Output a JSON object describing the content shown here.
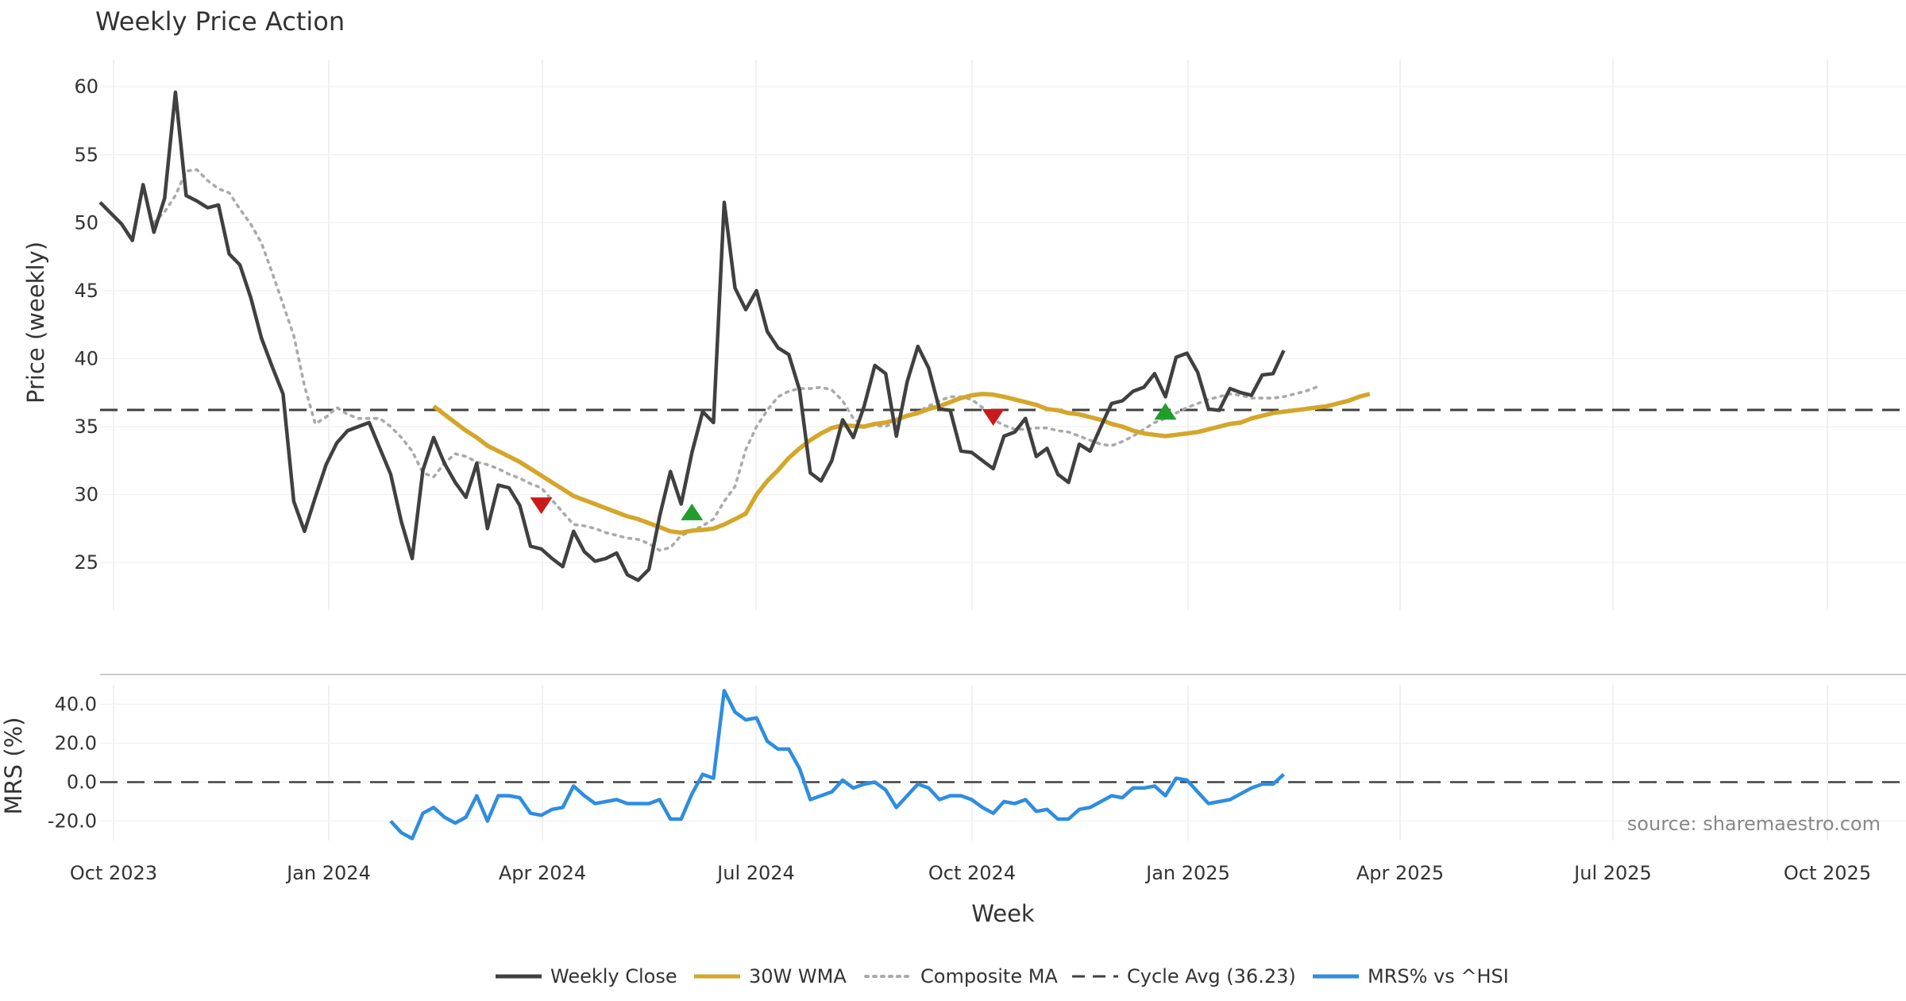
{
  "chart_data": {
    "type": "line",
    "title": "Weekly Price Action",
    "xlabel": "Week",
    "source_note": "source: sharemaestro.com",
    "x_ticks": [
      "Oct 2023",
      "Jan 2024",
      "Apr 2024",
      "Jul 2024",
      "Oct 2024",
      "Jan 2025",
      "Apr 2025",
      "Jul 2025",
      "Oct 2025"
    ],
    "price_panel": {
      "ylabel": "Price (weekly)",
      "ylim": [
        21.5,
        62
      ],
      "y_ticks": [
        25,
        30,
        35,
        40,
        45,
        50,
        55,
        60
      ],
      "cycle_avg": 36.23,
      "weekly_close": [
        51.5,
        50.7,
        49.9,
        48.7,
        52.8,
        49.3,
        51.8,
        59.6,
        52.0,
        51.6,
        51.1,
        51.3,
        47.7,
        46.9,
        44.5,
        41.5,
        39.4,
        37.4,
        29.5,
        27.3,
        29.8,
        32.2,
        33.8,
        34.7,
        35.0,
        35.3,
        33.4,
        31.5,
        28.0,
        25.3,
        31.8,
        34.2,
        32.3,
        30.9,
        29.8,
        32.3,
        27.5,
        30.7,
        30.5,
        29.2,
        26.2,
        26.0,
        25.3,
        24.7,
        27.3,
        25.8,
        25.1,
        25.3,
        25.7,
        24.1,
        23.7,
        24.5,
        28.4,
        31.7,
        29.3,
        33.1,
        36.1,
        35.3,
        51.5,
        45.2,
        43.6,
        45.0,
        42.0,
        40.8,
        40.3,
        37.7,
        31.6,
        31.0,
        32.5,
        35.5,
        34.2,
        36.5,
        39.5,
        38.9,
        34.3,
        38.3,
        40.9,
        39.3,
        36.3,
        36.2,
        33.2,
        33.1,
        32.5,
        31.9,
        34.3,
        34.6,
        35.6,
        32.8,
        33.4,
        31.5,
        30.9,
        33.7,
        33.2,
        35.0,
        36.7,
        36.9,
        37.6,
        37.9,
        38.9,
        37.2,
        40.1,
        40.4,
        39.0,
        36.3,
        36.2,
        37.8,
        37.5,
        37.3,
        38.8,
        38.9,
        40.6
      ],
      "wma_30w_start_index": 31,
      "wma_30w": [
        36.5,
        35.9,
        35.3,
        34.7,
        34.2,
        33.6,
        33.2,
        32.8,
        32.4,
        31.9,
        31.4,
        30.9,
        30.4,
        29.9,
        29.6,
        29.3,
        29.0,
        28.7,
        28.4,
        28.2,
        27.9,
        27.6,
        27.3,
        27.2,
        27.35,
        27.4,
        27.5,
        27.8,
        28.2,
        28.6,
        30.0,
        31.0,
        31.8,
        32.7,
        33.4,
        34.0,
        34.5,
        34.9,
        35.1,
        35.05,
        35.0,
        35.2,
        35.3,
        35.5,
        35.8,
        36.0,
        36.3,
        36.5,
        36.8,
        37.1,
        37.3,
        37.4,
        37.35,
        37.2,
        37.0,
        36.8,
        36.6,
        36.3,
        36.2,
        36.0,
        35.9,
        35.7,
        35.5,
        35.2,
        35.0,
        34.7,
        34.5,
        34.4,
        34.3,
        34.4,
        34.5,
        34.6,
        34.8,
        35.0,
        35.2,
        35.3,
        35.6,
        35.8,
        36.0,
        36.1,
        36.2,
        36.3,
        36.4,
        36.5,
        36.7,
        36.9,
        37.2,
        37.4
      ],
      "composite_ma_start_index": 5,
      "composite_ma": [
        50.0,
        50.8,
        52.0,
        53.8,
        53.9,
        53.1,
        52.5,
        52.2,
        51.0,
        49.9,
        48.5,
        46.3,
        44.0,
        41.7,
        38.0,
        35.2,
        35.7,
        36.4,
        35.9,
        35.6,
        35.6,
        35.6,
        35.0,
        34.2,
        33.2,
        31.6,
        31.3,
        32.3,
        33.0,
        32.8,
        32.4,
        32.2,
        31.9,
        31.5,
        31.2,
        30.8,
        30.5,
        29.6,
        28.7,
        27.8,
        27.7,
        27.5,
        27.2,
        27.0,
        26.8,
        26.7,
        26.4,
        25.9,
        26.1,
        27.0,
        27.3,
        27.7,
        28.2,
        29.5,
        30.6,
        33.3,
        35.0,
        36.2,
        37.2,
        37.6,
        37.8,
        37.8,
        37.9,
        37.7,
        36.9,
        35.6,
        35.0,
        35.1,
        35.0,
        35.4,
        35.8,
        36.1,
        36.5,
        36.9,
        37.2,
        37.2,
        37.0,
        36.4,
        35.5,
        35.1,
        34.8,
        34.8,
        34.9,
        34.9,
        34.7,
        34.6,
        34.3,
        34.0,
        33.7,
        33.6,
        33.9,
        34.3,
        34.8,
        35.3,
        35.6,
        36.0,
        36.4,
        36.7,
        37.0,
        37.2,
        37.4,
        37.3,
        37.1,
        37.1,
        37.1,
        37.2,
        37.4,
        37.6,
        37.9
      ],
      "buy_signals": [
        {
          "index": 55,
          "value": 28.6
        },
        {
          "index": 99,
          "value": 36.0
        }
      ],
      "sell_signals": [
        {
          "index": 41,
          "value": 29.3
        },
        {
          "index": 83,
          "value": 35.8
        }
      ]
    },
    "mrs_panel": {
      "ylabel": "MRS (%)",
      "ylim": [
        -30,
        50
      ],
      "y_ticks": [
        40.0,
        20.0,
        0.0,
        -20.0
      ],
      "y_tick_labels": [
        "40.0",
        "20.0",
        "0.0",
        "-20.0"
      ],
      "reference_line": 0.0,
      "start_index": 27,
      "values": [
        -20,
        -26,
        -29,
        -16,
        -13,
        -18,
        -21,
        -18,
        -7,
        -20,
        -7,
        -7,
        -8,
        -16,
        -17,
        -14,
        -13,
        -2,
        -7,
        -11,
        -10,
        -9,
        -11,
        -11,
        -11,
        -9,
        -19,
        -19,
        -6,
        4,
        2,
        47,
        36,
        32,
        33,
        21,
        17,
        17,
        7,
        -9,
        -7,
        -5,
        1,
        -3,
        -1,
        0,
        -4,
        -13,
        -7,
        -1,
        -3,
        -9,
        -7,
        -7,
        -9,
        -13,
        -16,
        -10,
        -11,
        -9,
        -15,
        -14,
        -19,
        -19,
        -14,
        -13,
        -10,
        -7,
        -8,
        -3,
        -3,
        -2,
        -7,
        2,
        1,
        -5,
        -11,
        -10,
        -9,
        -6,
        -3,
        -1,
        -1,
        4
      ]
    },
    "legend": [
      {
        "label": "Weekly Close",
        "color": "#404040",
        "style": "solid"
      },
      {
        "label": "30W WMA",
        "color": "#d4a62a",
        "style": "solid"
      },
      {
        "label": "Composite MA",
        "color": "#aaaaaa",
        "style": "dotted"
      },
      {
        "label": "Cycle Avg (36.23)",
        "color": "#404040",
        "style": "dashed"
      },
      {
        "label": "MRS% vs ^HSI",
        "color": "#2e8de0",
        "style": "solid"
      }
    ],
    "colors": {
      "weekly_close": "#404040",
      "wma": "#d4a62a",
      "composite_ma": "#aaaaaa",
      "cycle_avg": "#404040",
      "mrs": "#2e8de0",
      "buy_marker": "#1f9e2c",
      "sell_marker": "#c91b1b"
    }
  }
}
